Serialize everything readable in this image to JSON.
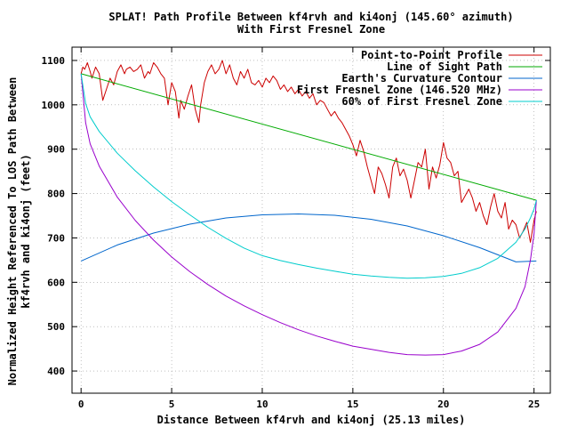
{
  "chart_data": {
    "type": "line",
    "title": "SPLAT! Path Profile Between kf4rvh and ki4onj (145.60° azimuth)",
    "subtitle": "With First Fresnel Zone",
    "xlabel": "Distance Between kf4rvh and ki4onj (25.13 miles)",
    "ylabel_line1": "Normalized Height Referenced To LOS Path Between",
    "ylabel_line2": "kf4rvh and ki4onj (feet)",
    "xlim": [
      -0.5,
      25.9
    ],
    "ylim": [
      350,
      1130
    ],
    "x_ticks": [
      0,
      5,
      10,
      15,
      20,
      25
    ],
    "y_ticks": [
      400,
      500,
      600,
      700,
      800,
      900,
      1000,
      1100
    ],
    "grid": true,
    "legend_position": "top-right",
    "series": [
      {
        "name": "Point-to-Point Profile",
        "color": "#cc0000",
        "x": [
          0,
          0.1,
          0.2,
          0.35,
          0.5,
          0.6,
          0.8,
          1,
          1.1,
          1.2,
          1.4,
          1.6,
          1.8,
          2,
          2.2,
          2.4,
          2.5,
          2.7,
          2.9,
          3.1,
          3.3,
          3.5,
          3.7,
          3.8,
          4,
          4.2,
          4.4,
          4.6,
          4.8,
          5,
          5.2,
          5.4,
          5.5,
          5.7,
          5.9,
          6.1,
          6.3,
          6.5,
          6.6,
          6.8,
          7,
          7.2,
          7.4,
          7.6,
          7.8,
          8,
          8.2,
          8.4,
          8.6,
          8.8,
          9,
          9.2,
          9.4,
          9.6,
          9.8,
          10,
          10.2,
          10.4,
          10.6,
          10.8,
          11,
          11.2,
          11.4,
          11.6,
          11.8,
          12,
          12.2,
          12.4,
          12.6,
          12.8,
          13,
          13.2,
          13.4,
          13.6,
          13.8,
          14,
          14.2,
          14.4,
          14.6,
          14.8,
          15,
          15.2,
          15.4,
          15.6,
          15.8,
          16,
          16.2,
          16.4,
          16.6,
          16.8,
          17,
          17.2,
          17.4,
          17.6,
          17.8,
          18,
          18.2,
          18.4,
          18.6,
          18.8,
          19,
          19.2,
          19.4,
          19.6,
          19.8,
          20,
          20.2,
          20.4,
          20.6,
          20.8,
          21,
          21.2,
          21.4,
          21.6,
          21.8,
          22,
          22.2,
          22.4,
          22.6,
          22.8,
          23,
          23.2,
          23.4,
          23.6,
          23.8,
          24,
          24.2,
          24.4,
          24.6,
          24.8,
          25,
          25.13
        ],
        "y": [
          1070,
          1085,
          1080,
          1095,
          1075,
          1060,
          1085,
          1070,
          1040,
          1010,
          1035,
          1060,
          1045,
          1075,
          1090,
          1070,
          1080,
          1085,
          1075,
          1080,
          1090,
          1060,
          1075,
          1070,
          1095,
          1085,
          1070,
          1060,
          1000,
          1050,
          1030,
          970,
          1010,
          990,
          1020,
          1045,
          990,
          960,
          1000,
          1050,
          1075,
          1090,
          1070,
          1080,
          1100,
          1070,
          1090,
          1060,
          1045,
          1075,
          1060,
          1080,
          1050,
          1045,
          1055,
          1040,
          1060,
          1050,
          1065,
          1055,
          1035,
          1045,
          1030,
          1040,
          1025,
          1035,
          1020,
          1030,
          1015,
          1025,
          1000,
          1010,
          1005,
          990,
          975,
          985,
          970,
          960,
          945,
          930,
          910,
          885,
          920,
          895,
          860,
          830,
          800,
          860,
          845,
          820,
          790,
          860,
          880,
          840,
          855,
          830,
          790,
          830,
          870,
          860,
          900,
          810,
          860,
          835,
          865,
          915,
          880,
          870,
          840,
          850,
          780,
          795,
          810,
          790,
          760,
          780,
          750,
          730,
          770,
          800,
          760,
          745,
          780,
          720,
          740,
          730,
          700,
          715,
          735,
          690,
          740,
          760
        ],
        "width": 1
      },
      {
        "name": "Line of Sight Path",
        "color": "#00aa00",
        "x": [
          0,
          25.13
        ],
        "y": [
          1070,
          785
        ]
      },
      {
        "name": "Earth's Curvature Contour",
        "color": "#0066cc",
        "x": [
          0,
          2,
          4,
          6,
          8,
          10,
          12,
          14,
          16,
          18,
          20,
          22,
          24,
          25.13
        ],
        "y": [
          648,
          684,
          711,
          731,
          745,
          752,
          754,
          751,
          742,
          727,
          705,
          678,
          646,
          648
        ]
      },
      {
        "name": "First Fresnel Zone (146.520 MHz)",
        "color": "#9900cc",
        "x": [
          0,
          0.25,
          0.5,
          1,
          2,
          3,
          4,
          5,
          6,
          7,
          8,
          9,
          10,
          11,
          12,
          13,
          14,
          15,
          16,
          17,
          18,
          19,
          20,
          21,
          22,
          23,
          24,
          24.5,
          24.8,
          25,
          25.13
        ],
        "y": [
          1070,
          960,
          912,
          862,
          792,
          739,
          695,
          657,
          624,
          595,
          569,
          547,
          527,
          509,
          493,
          479,
          467,
          456,
          449,
          442,
          437,
          436,
          437,
          445,
          460,
          488,
          541,
          590,
          650,
          710,
          785
        ]
      },
      {
        "name": "60% of First Fresnel Zone",
        "color": "#00cccc",
        "x": [
          0,
          0.25,
          0.5,
          1,
          2,
          3,
          4,
          5,
          6,
          7,
          8,
          9,
          10,
          11,
          12,
          13,
          14,
          15,
          16,
          17,
          18,
          19,
          20,
          21,
          22,
          23,
          24,
          24.5,
          24.8,
          25,
          25.13
        ],
        "y": [
          1070,
          1003,
          973,
          940,
          891,
          851,
          815,
          782,
          752,
          724,
          699,
          677,
          660,
          649,
          640,
          632,
          625,
          618,
          614,
          611,
          609,
          610,
          613,
          620,
          633,
          654,
          690,
          720,
          745,
          765,
          785
        ]
      }
    ]
  }
}
